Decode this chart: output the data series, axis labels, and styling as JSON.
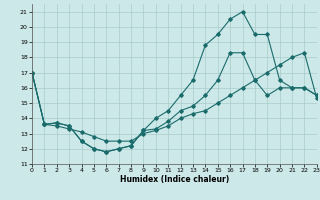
{
  "xlabel": "Humidex (Indice chaleur)",
  "bg_color": "#cde8e8",
  "grid_color": "#aacccc",
  "line_color": "#1a6b6b",
  "xlim": [
    0,
    23
  ],
  "ylim": [
    11,
    21.5
  ],
  "yticks": [
    11,
    12,
    13,
    14,
    15,
    16,
    17,
    18,
    19,
    20,
    21
  ],
  "xticks": [
    0,
    1,
    2,
    3,
    4,
    5,
    6,
    7,
    8,
    9,
    10,
    11,
    12,
    13,
    14,
    15,
    16,
    17,
    18,
    19,
    20,
    21,
    22,
    23
  ],
  "line_zigzag_x": [
    0,
    1,
    2,
    3,
    4,
    5,
    6,
    7,
    8,
    9,
    10,
    11,
    12,
    13,
    14,
    15,
    16,
    17,
    18,
    19,
    20,
    21,
    22,
    23
  ],
  "line_zigzag_y": [
    17,
    13.6,
    13.7,
    13.5,
    12.5,
    12.0,
    11.8,
    12.0,
    12.2,
    13.2,
    13.3,
    13.8,
    14.5,
    14.8,
    15.5,
    16.5,
    18.3,
    18.3,
    16.5,
    15.5,
    16.0,
    16.0,
    16.0,
    15.5
  ],
  "line_peak_x": [
    0,
    1,
    2,
    3,
    4,
    5,
    6,
    7,
    8,
    9,
    10,
    11,
    12,
    13,
    14,
    15,
    16,
    17,
    18,
    19,
    20,
    21,
    22,
    23
  ],
  "line_peak_y": [
    17,
    13.6,
    13.7,
    13.5,
    12.5,
    12.0,
    11.8,
    12.0,
    12.2,
    13.2,
    14.0,
    14.5,
    15.5,
    16.5,
    18.8,
    19.5,
    20.5,
    21.0,
    19.5,
    19.5,
    16.5,
    16.0,
    16.0,
    15.5
  ],
  "line_diag_x": [
    0,
    1,
    2,
    3,
    4,
    5,
    6,
    7,
    8,
    9,
    10,
    11,
    12,
    13,
    14,
    15,
    16,
    17,
    18,
    19,
    20,
    21,
    22,
    23
  ],
  "line_diag_y": [
    17,
    13.6,
    13.5,
    13.3,
    13.1,
    12.8,
    12.5,
    12.5,
    12.5,
    13.0,
    13.2,
    13.5,
    14.0,
    14.3,
    14.5,
    15.0,
    15.5,
    16.0,
    16.5,
    17.0,
    17.5,
    18.0,
    18.3,
    15.3
  ]
}
